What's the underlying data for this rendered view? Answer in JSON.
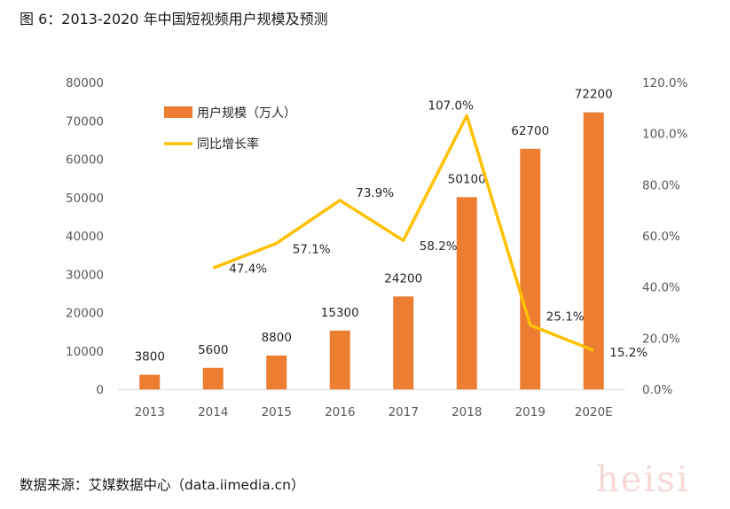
{
  "title": "图 6：2013-2020 年中国短视频用户规模及预测",
  "source": "数据来源：艾媒数据中心（data.iimedia.cn）",
  "watermark": "heisi",
  "colors": {
    "bar": "#ed7d31",
    "line": "#ffc000",
    "axis_text": "#595959",
    "axis_line": "#d9d9d9"
  },
  "chart_data": {
    "type": "bar",
    "categories": [
      "2013",
      "2014",
      "2015",
      "2016",
      "2017",
      "2018",
      "2019",
      "2020E"
    ],
    "series": [
      {
        "name": "用户规模（万人）",
        "type": "bar",
        "axis": "left",
        "values": [
          3800,
          5600,
          8800,
          15300,
          24200,
          50100,
          62700,
          72200
        ],
        "labels": [
          "3800",
          "5600",
          "8800",
          "15300",
          "24200",
          "50100",
          "62700",
          "72200"
        ]
      },
      {
        "name": "同比增长率",
        "type": "line",
        "axis": "right",
        "values": [
          null,
          47.4,
          57.1,
          73.9,
          58.2,
          107.0,
          25.1,
          15.2
        ],
        "labels": [
          null,
          "47.4%",
          "57.1%",
          "73.9%",
          "58.2%",
          "107.0%",
          "25.1%",
          "15.2%"
        ]
      }
    ],
    "yleft": {
      "ylim": [
        0,
        80000
      ],
      "ticks": [
        "0",
        "10000",
        "20000",
        "30000",
        "40000",
        "50000",
        "60000",
        "70000",
        "80000"
      ]
    },
    "yright": {
      "ylim": [
        0,
        120
      ],
      "ticks": [
        "0.0%",
        "20.0%",
        "40.0%",
        "60.0%",
        "80.0%",
        "100.0%",
        "120.0%"
      ]
    },
    "grid": false,
    "legend": "top-left"
  }
}
